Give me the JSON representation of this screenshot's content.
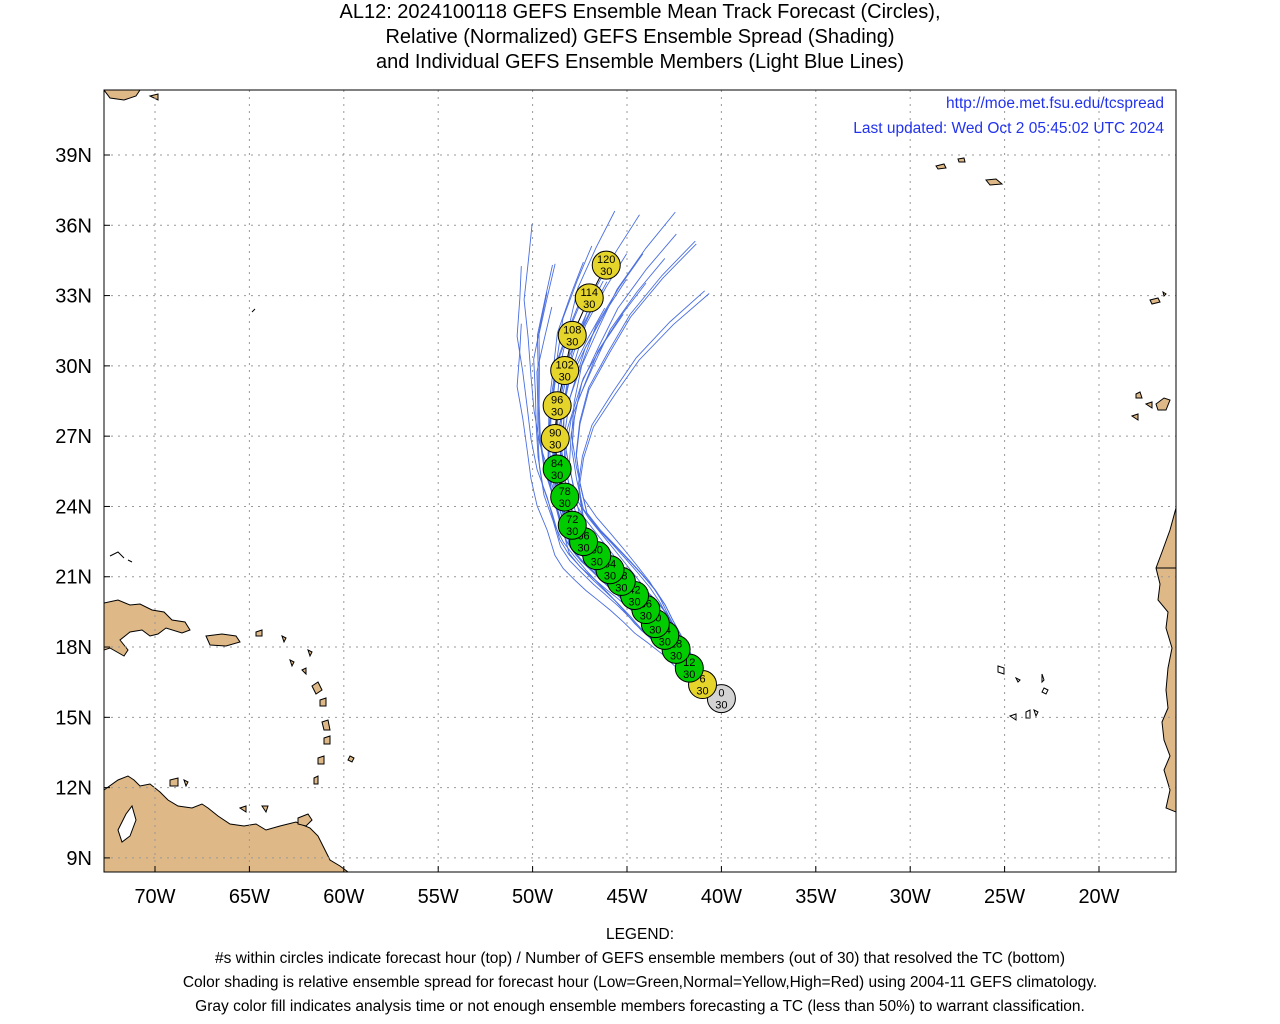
{
  "title_lines": [
    "AL12: 2024100118 GEFS Ensemble Mean Track Forecast (Circles),",
    "Relative (Normalized) GEFS Ensemble Spread (Shading)",
    "and Individual GEFS Ensemble Members (Light Blue Lines)"
  ],
  "credit": {
    "url": "http://moe.met.fsu.edu/tcspread",
    "updated": "Last updated: Wed Oct  2 05:45:02 UTC 2024"
  },
  "legend": {
    "heading": "LEGEND:",
    "lines": [
      "#s within circles indicate forecast hour (top) / Number of GEFS ensemble members (out of 30) that resolved the TC (bottom)",
      "Color shading is relative ensemble spread for forecast hour (Low=Green,Normal=Yellow,High=Red) using 2004-11 GEFS climatology.",
      "Gray color fill indicates analysis time or not enough ensemble members forecasting a TC (less than 50%) to warrant classification."
    ]
  },
  "map": {
    "lon_ticks": [
      "70W",
      "65W",
      "60W",
      "55W",
      "50W",
      "45W",
      "40W",
      "35W",
      "30W",
      "25W",
      "20W"
    ],
    "lat_ticks": [
      "39N",
      "36N",
      "33N",
      "30N",
      "27N",
      "24N",
      "21N",
      "18N",
      "15N",
      "12N",
      "9N"
    ],
    "colors": {
      "land": "#deb887",
      "member_line": "#4a6ee0",
      "spread_low": "#00cc00",
      "spread_normal": "#e5d42a",
      "analysis": "#d3d3d3",
      "credit": "#2233ee"
    }
  },
  "track_points": [
    {
      "hour": "0",
      "members": "30",
      "spread": "analysis",
      "lon": -40.0,
      "lat": 15.8
    },
    {
      "hour": "6",
      "members": "30",
      "spread": "normal",
      "lon": -41.0,
      "lat": 16.4
    },
    {
      "hour": "12",
      "members": "30",
      "spread": "low",
      "lon": -41.7,
      "lat": 17.1
    },
    {
      "hour": "18",
      "members": "30",
      "spread": "low",
      "lon": -42.4,
      "lat": 17.9
    },
    {
      "hour": "24",
      "members": "30",
      "spread": "low",
      "lon": -43.0,
      "lat": 18.5
    },
    {
      "hour": "30",
      "members": "30",
      "spread": "low",
      "lon": -43.5,
      "lat": 19.0
    },
    {
      "hour": "36",
      "members": "30",
      "spread": "low",
      "lon": -44.0,
      "lat": 19.6
    },
    {
      "hour": "42",
      "members": "30",
      "spread": "low",
      "lon": -44.6,
      "lat": 20.2
    },
    {
      "hour": "48",
      "members": "30",
      "spread": "low",
      "lon": -45.3,
      "lat": 20.8
    },
    {
      "hour": "54",
      "members": "30",
      "spread": "low",
      "lon": -45.9,
      "lat": 21.3
    },
    {
      "hour": "60",
      "members": "30",
      "spread": "low",
      "lon": -46.6,
      "lat": 21.9
    },
    {
      "hour": "66",
      "members": "30",
      "spread": "low",
      "lon": -47.3,
      "lat": 22.5
    },
    {
      "hour": "72",
      "members": "30",
      "spread": "low",
      "lon": -47.9,
      "lat": 23.2
    },
    {
      "hour": "78",
      "members": "30",
      "spread": "low",
      "lon": -48.3,
      "lat": 24.4
    },
    {
      "hour": "84",
      "members": "30",
      "spread": "low",
      "lon": -48.7,
      "lat": 25.6
    },
    {
      "hour": "90",
      "members": "30",
      "spread": "normal",
      "lon": -48.8,
      "lat": 26.9
    },
    {
      "hour": "96",
      "members": "30",
      "spread": "normal",
      "lon": -48.7,
      "lat": 28.3
    },
    {
      "hour": "102",
      "members": "30",
      "spread": "normal",
      "lon": -48.3,
      "lat": 29.8
    },
    {
      "hour": "108",
      "members": "30",
      "spread": "normal",
      "lon": -47.9,
      "lat": 31.3
    },
    {
      "hour": "114",
      "members": "30",
      "spread": "normal",
      "lon": -47.0,
      "lat": 32.9
    },
    {
      "hour": "120",
      "members": "30",
      "spread": "normal",
      "lon": -46.1,
      "lat": 34.3
    }
  ]
}
